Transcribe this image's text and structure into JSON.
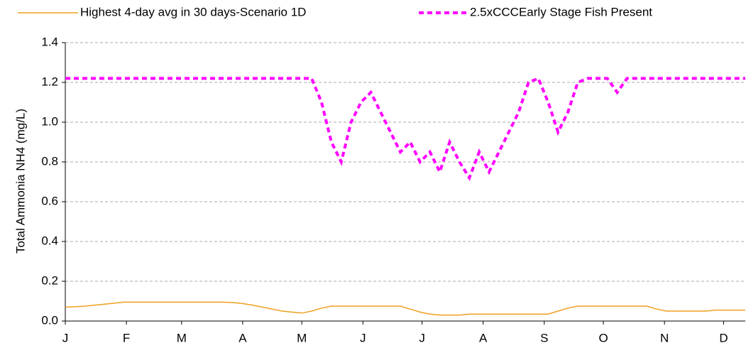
{
  "chart_data": {
    "type": "line",
    "legend": "top",
    "grid": true,
    "y_label": "Total Ammonia NH4 (mg/L)",
    "x": [
      0,
      5,
      10,
      15,
      20,
      25,
      30,
      35,
      40,
      45,
      50,
      55,
      60,
      65,
      70,
      75,
      80,
      85,
      90,
      95,
      100,
      105,
      110,
      115,
      120,
      125,
      130,
      135,
      140,
      145,
      150,
      155,
      160,
      165,
      170,
      175,
      180,
      185,
      190,
      195,
      200,
      205,
      210,
      215,
      220,
      225,
      230,
      235,
      240,
      245,
      250,
      255,
      260,
      265,
      270,
      275,
      280,
      285,
      290,
      295,
      300,
      305,
      310,
      315,
      320,
      325,
      330,
      335,
      340,
      345
    ],
    "xlim": [
      0,
      345
    ],
    "xticks": [
      {
        "value": 0,
        "label": "J"
      },
      {
        "value": 31,
        "label": "F"
      },
      {
        "value": 59,
        "label": "M"
      },
      {
        "value": 90,
        "label": "A"
      },
      {
        "value": 120,
        "label": "M"
      },
      {
        "value": 151,
        "label": "J"
      },
      {
        "value": 181,
        "label": "J"
      },
      {
        "value": 212,
        "label": "A"
      },
      {
        "value": 243,
        "label": "S"
      },
      {
        "value": 273,
        "label": "O"
      },
      {
        "value": 304,
        "label": "N"
      },
      {
        "value": 334,
        "label": "D"
      }
    ],
    "ylim": [
      0,
      1.4
    ],
    "yticks": [
      {
        "value": 0,
        "label": "0.0"
      },
      0.2,
      0.4,
      0.6,
      0.8,
      {
        "value": 1,
        "label": "1.0"
      },
      1.2,
      1.4
    ],
    "series": [
      {
        "name": "Highest 4-day avg in 30 days-Scenario 1D",
        "color": "#f0a020",
        "dashed": false,
        "values": [
          0.07,
          0.072,
          0.075,
          0.08,
          0.085,
          0.09,
          0.095,
          0.095,
          0.095,
          0.095,
          0.095,
          0.095,
          0.095,
          0.095,
          0.095,
          0.095,
          0.095,
          0.093,
          0.088,
          0.08,
          0.07,
          0.06,
          0.05,
          0.045,
          0.04,
          0.05,
          0.065,
          0.075,
          0.075,
          0.075,
          0.075,
          0.075,
          0.075,
          0.075,
          0.075,
          0.06,
          0.045,
          0.035,
          0.03,
          0.03,
          0.03,
          0.035,
          0.035,
          0.035,
          0.035,
          0.035,
          0.035,
          0.035,
          0.035,
          0.035,
          0.05,
          0.065,
          0.075,
          0.075,
          0.075,
          0.075,
          0.075,
          0.075,
          0.075,
          0.075,
          0.06,
          0.05,
          0.05,
          0.05,
          0.05,
          0.05,
          0.055,
          0.055,
          0.055,
          0.055
        ]
      },
      {
        "name": "2.5xCCCEarly Stage Fish Present",
        "color": "#ff00ff",
        "dashed": true,
        "values": [
          1.22,
          1.22,
          1.22,
          1.22,
          1.22,
          1.22,
          1.22,
          1.22,
          1.22,
          1.22,
          1.22,
          1.22,
          1.22,
          1.22,
          1.22,
          1.22,
          1.22,
          1.22,
          1.22,
          1.22,
          1.22,
          1.22,
          1.22,
          1.22,
          1.22,
          1.22,
          1.1,
          0.9,
          0.8,
          1.0,
          1.1,
          1.15,
          1.05,
          0.95,
          0.85,
          0.9,
          0.8,
          0.85,
          0.75,
          0.9,
          0.8,
          0.72,
          0.85,
          0.75,
          0.85,
          0.95,
          1.05,
          1.2,
          1.22,
          1.1,
          0.95,
          1.05,
          1.2,
          1.22,
          1.22,
          1.22,
          1.15,
          1.22,
          1.22,
          1.22,
          1.22,
          1.22,
          1.22,
          1.22,
          1.22,
          1.22,
          1.22,
          1.22,
          1.22,
          1.22
        ]
      }
    ]
  }
}
